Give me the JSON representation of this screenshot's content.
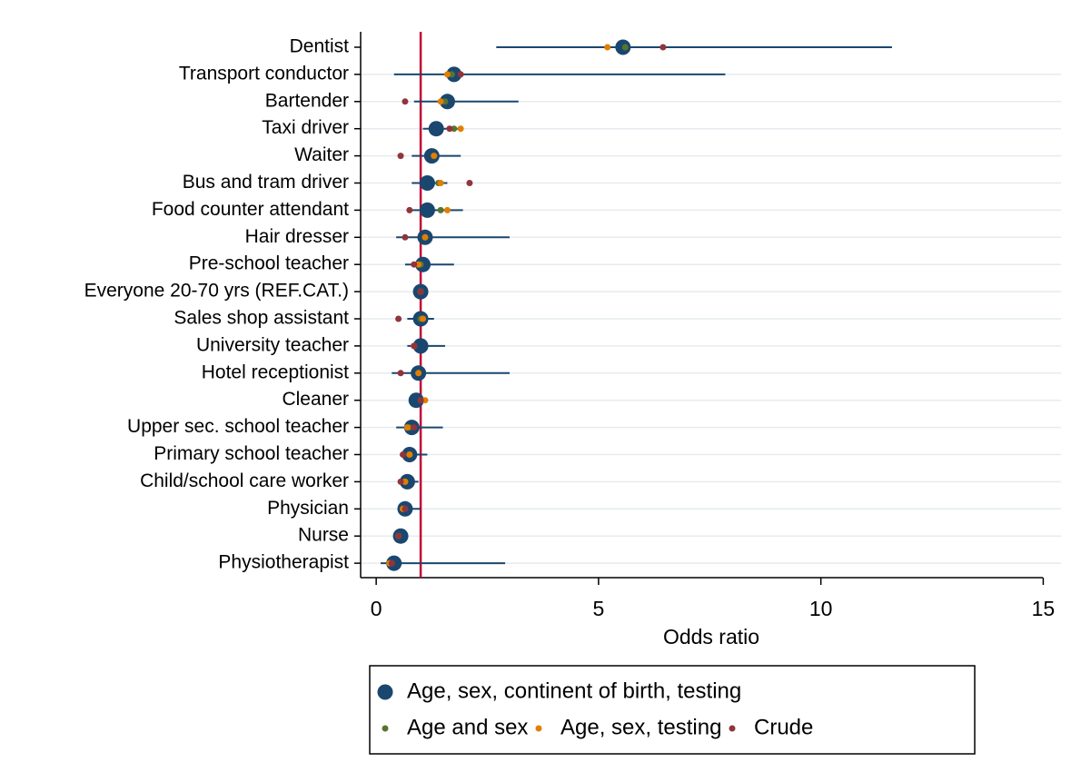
{
  "chart_data": {
    "type": "forest",
    "xlabel": "Odds ratio",
    "categories": [
      "Dentist",
      "Transport conductor",
      "Bartender",
      "Taxi driver",
      "Waiter",
      "Bus and tram driver",
      "Food counter attendant",
      "Hair dresser",
      "Pre-school teacher",
      "Everyone 20-70 yrs (REF.CAT.)",
      "Sales shop assistant",
      "University teacher",
      "Hotel receptionist",
      "Cleaner",
      "Upper sec. school teacher",
      "Primary school teacher",
      "Child/school care worker",
      "Physician",
      "Nurse",
      "Physiotherapist"
    ],
    "series": [
      {
        "name": "Age, sex, continent of birth, testing",
        "color": "#1a476f",
        "values": [
          5.55,
          1.75,
          1.6,
          1.35,
          1.25,
          1.15,
          1.15,
          1.1,
          1.05,
          1,
          1.0,
          1.0,
          0.95,
          0.9,
          0.8,
          0.75,
          0.7,
          0.65,
          0.55,
          0.4
        ],
        "low": [
          2.7,
          0.4,
          0.85,
          1.05,
          0.8,
          0.8,
          0.75,
          0.45,
          0.65,
          1,
          0.7,
          0.7,
          0.35,
          0.75,
          0.45,
          0.6,
          0.5,
          0.5,
          0.45,
          0.1
        ],
        "high": [
          11.6,
          7.85,
          3.2,
          1.95,
          1.9,
          1.6,
          1.95,
          3.0,
          1.75,
          1,
          1.3,
          1.55,
          3.0,
          1.0,
          1.5,
          1.15,
          0.95,
          1.0,
          0.65,
          2.9
        ]
      },
      {
        "name": "Age and sex",
        "color": "#55752f",
        "values": [
          5.6,
          1.7,
          1.55,
          1.75,
          1.3,
          1.4,
          1.45,
          1.1,
          1.0,
          1,
          1.0,
          0.85,
          0.95,
          1.0,
          0.75,
          0.75,
          0.65,
          0.65,
          0.5,
          0.35
        ]
      },
      {
        "name": "Age, sex, testing",
        "color": "#e37e00",
        "values": [
          5.2,
          1.6,
          1.45,
          1.9,
          1.3,
          1.45,
          1.6,
          1.1,
          0.95,
          1,
          1.05,
          0.85,
          0.95,
          1.1,
          0.7,
          0.75,
          0.65,
          0.6,
          0.5,
          0.3
        ]
      },
      {
        "name": "Crude",
        "color": "#90353b",
        "values": [
          6.45,
          1.9,
          0.65,
          1.65,
          0.55,
          2.1,
          0.75,
          0.65,
          0.85,
          1,
          0.5,
          0.85,
          0.55,
          1.0,
          0.85,
          0.6,
          0.55,
          0.65,
          0.5,
          0.35
        ]
      }
    ],
    "reference_line": 1,
    "reference_color": "#c10534",
    "xlim": [
      -0.35,
      15.4
    ],
    "xticks": [
      0,
      5,
      10,
      15
    ],
    "grid": true
  }
}
